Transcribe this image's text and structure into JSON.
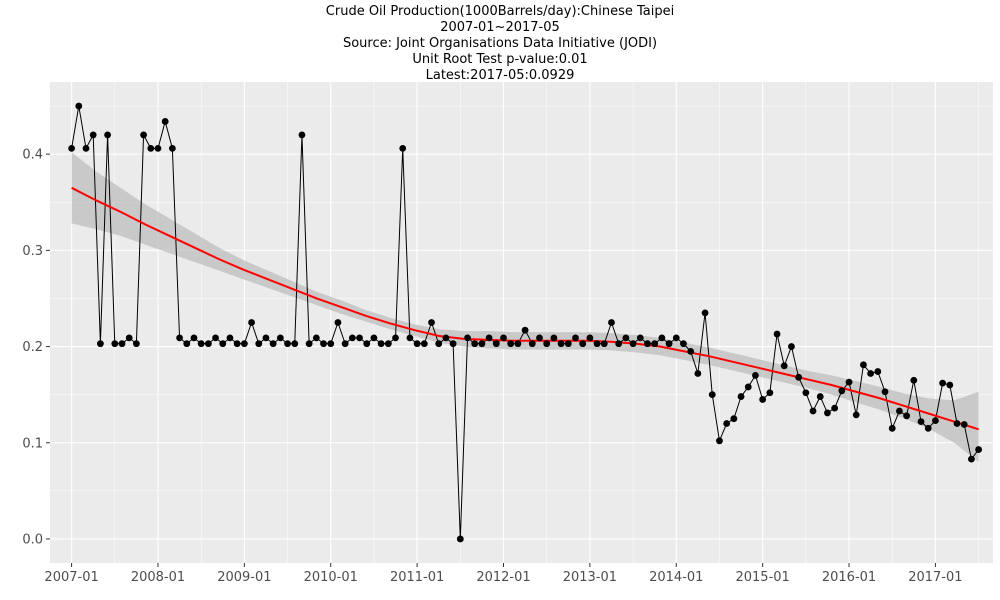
{
  "title_lines": {
    "line1": "Crude Oil Production(1000Barrels/day):Chinese Taipei",
    "line2": "2007-01~2017-05",
    "line3": "Source: Joint Organisations Data Initiative (JODI)",
    "line4": "Unit Root Test p-value:0.01",
    "line5": "Latest:2017-05:0.0929"
  },
  "colors": {
    "panel_bg": "#ebebeb",
    "grid": "#ffffff",
    "line": "#000000",
    "point": "#000000",
    "trend": "#ff0000",
    "band": "#bebebe"
  },
  "chart_data": {
    "type": "line",
    "title": "Crude Oil Production(1000Barrels/day):Chinese Taipei",
    "xlabel": "",
    "ylabel": "",
    "x_start": "2007-01",
    "x_end": "2017-05",
    "xlim": [
      "2006-10",
      "2017-09"
    ],
    "ylim": [
      -0.025,
      0.475
    ],
    "x_ticks": [
      "2007-01",
      "2008-01",
      "2009-01",
      "2010-01",
      "2011-01",
      "2012-01",
      "2013-01",
      "2014-01",
      "2015-01",
      "2016-01",
      "2017-01"
    ],
    "y_ticks": [
      0.0,
      0.1,
      0.2,
      0.3,
      0.4
    ],
    "y_tick_labels": [
      "0.0",
      "0.1",
      "0.2",
      "0.3",
      "0.4"
    ],
    "grid": true,
    "legend": "none",
    "series": [
      {
        "values": [
          0.406,
          0.45,
          0.406,
          0.42,
          0.203,
          0.42,
          0.203,
          0.203,
          0.209,
          0.203,
          0.42,
          0.406,
          0.406,
          0.434,
          0.406,
          0.209,
          0.203,
          0.209,
          0.203,
          0.203,
          0.209,
          0.203,
          0.209,
          0.203,
          0.203,
          0.225,
          0.203,
          0.209,
          0.203,
          0.209,
          0.203,
          0.203,
          0.42,
          0.203,
          0.209,
          0.203,
          0.203,
          0.225,
          0.203,
          0.209,
          0.209,
          0.203,
          0.209,
          0.203,
          0.203,
          0.209,
          0.406,
          0.209,
          0.203,
          0.203,
          0.225,
          0.203,
          0.209,
          0.203,
          0.0,
          0.209,
          0.203,
          0.203,
          0.209,
          0.203,
          0.209,
          0.203,
          0.203,
          0.217,
          0.203,
          0.209,
          0.203,
          0.209,
          0.203,
          0.203,
          0.209,
          0.203,
          0.209,
          0.203,
          0.203,
          0.225,
          0.203,
          0.209,
          0.203,
          0.209,
          0.203,
          0.203,
          0.209,
          0.203,
          0.209,
          0.203,
          0.195,
          0.172,
          0.235,
          0.15,
          0.102,
          0.12,
          0.125,
          0.148,
          0.158,
          0.17,
          0.145,
          0.152,
          0.213,
          0.18,
          0.2,
          0.168,
          0.152,
          0.133,
          0.148,
          0.131,
          0.136,
          0.154,
          0.163,
          0.129,
          0.181,
          0.172,
          0.174,
          0.153,
          0.115,
          0.133,
          0.128,
          0.165,
          0.122,
          0.115,
          0.123,
          0.162,
          0.16,
          0.12,
          0.119,
          0.083,
          0.0929
        ]
      }
    ],
    "trend": {
      "values": [
        0.365,
        0.352,
        0.34,
        0.327,
        0.315,
        0.303,
        0.291,
        0.28,
        0.27,
        0.26,
        0.25,
        0.241,
        0.232,
        0.224,
        0.217,
        0.211,
        0.208,
        0.207,
        0.206,
        0.206,
        0.206,
        0.206,
        0.205,
        0.203,
        0.2,
        0.195,
        0.19,
        0.184,
        0.178,
        0.172,
        0.166,
        0.16,
        0.153,
        0.146,
        0.138,
        0.13,
        0.122,
        0.114
      ],
      "band_lower": [
        0.328,
        0.322,
        0.315,
        0.306,
        0.297,
        0.288,
        0.279,
        0.27,
        0.261,
        0.252,
        0.243,
        0.234,
        0.226,
        0.218,
        0.211,
        0.204,
        0.2,
        0.198,
        0.197,
        0.197,
        0.197,
        0.197,
        0.196,
        0.194,
        0.191,
        0.186,
        0.181,
        0.175,
        0.169,
        0.163,
        0.157,
        0.15,
        0.142,
        0.134,
        0.125,
        0.114,
        0.1,
        0.08
      ],
      "band_upper": [
        0.402,
        0.382,
        0.365,
        0.348,
        0.333,
        0.318,
        0.303,
        0.29,
        0.279,
        0.268,
        0.257,
        0.248,
        0.238,
        0.23,
        0.223,
        0.218,
        0.216,
        0.216,
        0.215,
        0.215,
        0.215,
        0.215,
        0.214,
        0.212,
        0.209,
        0.204,
        0.199,
        0.193,
        0.187,
        0.181,
        0.175,
        0.17,
        0.164,
        0.158,
        0.151,
        0.146,
        0.144,
        0.153
      ]
    }
  }
}
